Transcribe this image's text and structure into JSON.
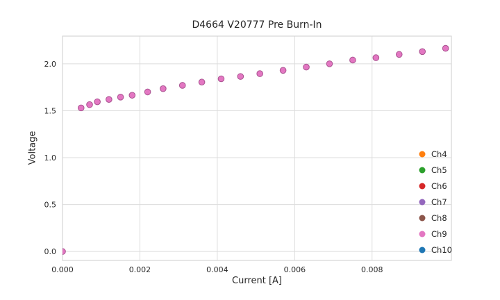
{
  "chart_data": {
    "type": "scatter",
    "title": "D4664 V20777 Pre Burn-In",
    "xlabel": "Current [A]",
    "ylabel": "Voltage",
    "xlim": [
      0,
      0.01005
    ],
    "ylim": [
      -0.095,
      2.295
    ],
    "xticks": [
      0,
      0.002,
      0.004,
      0.006,
      0.008
    ],
    "xtick_labels": [
      "0.000",
      "0.002",
      "0.004",
      "0.006",
      "0.008"
    ],
    "yticks": [
      0,
      0.5,
      1.0,
      1.5,
      2.0
    ],
    "ytick_labels": [
      "0.0",
      "0.5",
      "1.0",
      "1.5",
      "2.0"
    ],
    "grid": true,
    "grid_color": "#dcdcdc",
    "border_color": "#d5d5d5",
    "tick_label_color": "#262626",
    "legend_position": "lower right",
    "series": [
      {
        "name": "Ch4",
        "color": "#ff7f0e",
        "points": []
      },
      {
        "name": "Ch5",
        "color": "#2ca02c",
        "points": []
      },
      {
        "name": "Ch6",
        "color": "#d62728",
        "points": []
      },
      {
        "name": "Ch7",
        "color": "#9467bd",
        "points": []
      },
      {
        "name": "Ch8",
        "color": "#8c564b",
        "points": []
      },
      {
        "name": "Ch9",
        "color": "#e377c2",
        "edge_color": "#a8528f",
        "points": [
          [
            0.0,
            0.0
          ],
          [
            0.00048,
            1.53
          ],
          [
            0.0007,
            1.565
          ],
          [
            0.0009,
            1.595
          ],
          [
            0.0012,
            1.62
          ],
          [
            0.0015,
            1.645
          ],
          [
            0.0018,
            1.665
          ],
          [
            0.0022,
            1.7
          ],
          [
            0.0026,
            1.735
          ],
          [
            0.0031,
            1.77
          ],
          [
            0.0036,
            1.805
          ],
          [
            0.0041,
            1.84
          ],
          [
            0.0046,
            1.865
          ],
          [
            0.0051,
            1.895
          ],
          [
            0.0057,
            1.93
          ],
          [
            0.0063,
            1.965
          ],
          [
            0.0069,
            2.0
          ],
          [
            0.0075,
            2.04
          ],
          [
            0.0081,
            2.065
          ],
          [
            0.0087,
            2.1
          ],
          [
            0.0093,
            2.13
          ],
          [
            0.0099,
            2.165
          ]
        ]
      },
      {
        "name": "Ch10",
        "color": "#1f77b4",
        "points": []
      }
    ]
  }
}
